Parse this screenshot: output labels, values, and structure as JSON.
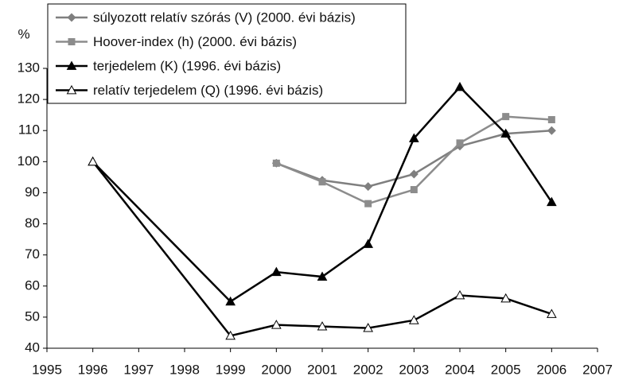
{
  "chart_data": {
    "type": "line",
    "y_label": "%",
    "x": [
      1996,
      1999,
      2000,
      2001,
      2002,
      2003,
      2004,
      2005,
      2006
    ],
    "series": [
      {
        "name": "súlyozott relatív szórás (V) (2000. évi bázis)",
        "color": "#7f7f7f",
        "marker": "diamond",
        "values": [
          null,
          null,
          99.5,
          94,
          92,
          96,
          105,
          109,
          110
        ]
      },
      {
        "name": "Hoover-index (h) (2000. évi bázis)",
        "color": "#8c8c8c",
        "marker": "square",
        "values": [
          null,
          null,
          99.5,
          93.5,
          86.5,
          91,
          106,
          114.5,
          113.5
        ]
      },
      {
        "name": "terjedelem (K) (1996. évi bázis)",
        "color": "#000000",
        "marker": "triangle",
        "values": [
          100,
          55,
          64.5,
          63,
          73.5,
          107.5,
          124,
          109,
          87
        ]
      },
      {
        "name": "relatív terjedelem (Q) (1996. évi bázis)",
        "color": "#000000",
        "marker": "open-triangle",
        "values": [
          100,
          44,
          47.5,
          47,
          46.5,
          49,
          57,
          56,
          51
        ]
      }
    ],
    "xlim": [
      1995,
      2007
    ],
    "xticks": [
      1995,
      1996,
      1997,
      1998,
      1999,
      2000,
      2001,
      2002,
      2003,
      2004,
      2005,
      2006,
      2007
    ],
    "ylim": [
      40,
      130
    ],
    "yticks": [
      40,
      50,
      60,
      70,
      80,
      90,
      100,
      110,
      120,
      130
    ],
    "grid": false,
    "legend": "top-left"
  }
}
